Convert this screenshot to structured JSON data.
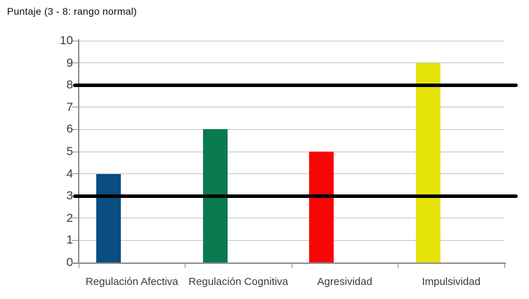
{
  "chart_data": {
    "type": "bar",
    "title": "Puntaje (3 - 8: rango normal)",
    "categories": [
      "Regulación Afectiva",
      "Regulación Cognitiva",
      "Agresividad",
      "Impulsividad"
    ],
    "values": [
      4,
      6,
      5,
      9
    ],
    "bar_colors": [
      "#0a4d80",
      "#0a7b51",
      "#fa0505",
      "#e5e20a"
    ],
    "xlabel": "",
    "ylabel": "",
    "ylim": [
      0,
      10
    ],
    "yticks": [
      0,
      1,
      2,
      3,
      4,
      5,
      6,
      7,
      8,
      9,
      10
    ],
    "reference_lines": [
      {
        "value": 3,
        "color": "#000000"
      },
      {
        "value": 8,
        "color": "#000000"
      }
    ],
    "grid": "horizontal",
    "legend": "none"
  },
  "colors": {
    "background": "#ffffff",
    "gridline": "#c3c3c3",
    "axis": "#8f8f8f",
    "tick_label": "#3a3a3a",
    "title_text": "#0d0d0d"
  }
}
